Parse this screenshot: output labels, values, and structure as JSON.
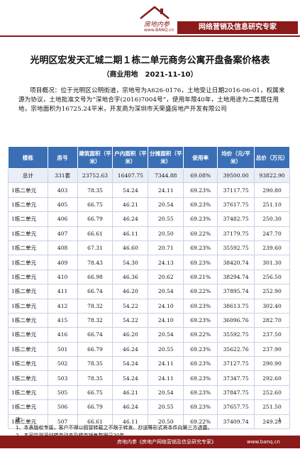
{
  "header": {
    "logo_text": "房地内参",
    "logo_url": "www.BANQ.cn",
    "banner": "网络营销及信息研究专家"
  },
  "title": "光明区宏发天汇城二期１栋二单元商务公寓开盘备案价格表",
  "subtitle": "（商业用地　2021-11-10）",
  "overview": "项目概况：位于光明区公明街道，宗地号为A626-0176，土地受让日期2016-06-01，权属来源为协议，土地批准文号为“深地合字(2016)7004号”，使用年限40年，土地用途为二类居住用地，宗地面积为16725.24平米，开发商为深圳市天荣盛房地产开发有限公司",
  "table": {
    "headers": [
      "楼栋",
      "房号",
      "建筑面积（平米）",
      "户内面积（平米）",
      "分摊面积（平米）",
      "使用率",
      "均价（元/平米）",
      "总价（万元）"
    ],
    "total": [
      "总计",
      "331套",
      "23752.63",
      "16407.75",
      "7344.88",
      "69.08%",
      "39500.00",
      "93822.90"
    ],
    "rows": [
      [
        "1栋二单元",
        "403",
        "78.35",
        "54.24",
        "24.11",
        "69.23%",
        "37117.75",
        "290.80"
      ],
      [
        "1栋二单元",
        "405",
        "66.75",
        "46.21",
        "20.54",
        "69.23%",
        "37617.75",
        "251.10"
      ],
      [
        "1栋二单元",
        "406",
        "66.79",
        "46.24",
        "20.55",
        "69.23%",
        "37482.75",
        "250.30"
      ],
      [
        "1栋二单元",
        "407",
        "66.61",
        "46.11",
        "20.50",
        "69.22%",
        "37179.75",
        "247.70"
      ],
      [
        "1栋二单元",
        "408",
        "67.31",
        "46.60",
        "20.71",
        "69.23%",
        "35592.75",
        "239.60"
      ],
      [
        "1栋二单元",
        "409",
        "78.43",
        "54.30",
        "24.13",
        "69.23%",
        "38420.74",
        "301.30"
      ],
      [
        "1栋二单元",
        "410",
        "66.98",
        "46.36",
        "20.62",
        "69.21%",
        "38294.74",
        "256.50"
      ],
      [
        "1栋二单元",
        "411",
        "66.74",
        "46.20",
        "20.54",
        "69.22%",
        "37895.74",
        "252.90"
      ],
      [
        "1栋二单元",
        "412",
        "78.32",
        "54.22",
        "24.10",
        "69.23%",
        "38613.75",
        "302.40"
      ],
      [
        "1栋二单元",
        "415",
        "78.32",
        "54.22",
        "24.10",
        "69.23%",
        "36096.76",
        "282.70"
      ],
      [
        "1栋二单元",
        "416",
        "66.74",
        "46.20",
        "20.54",
        "69.22%",
        "35592.75",
        "237.50"
      ],
      [
        "1栋二单元",
        "501",
        "66.79",
        "46.24",
        "20.55",
        "69.23%",
        "35622.76",
        "237.90"
      ],
      [
        "1栋二单元",
        "502",
        "78.35",
        "54.24",
        "24.11",
        "69.23%",
        "37127.75",
        "290.90"
      ],
      [
        "1栋二单元",
        "503",
        "78.35",
        "54.24",
        "24.11",
        "69.23%",
        "37347.75",
        "292.60"
      ],
      [
        "1栋二单元",
        "505",
        "66.75",
        "46.21",
        "20.54",
        "69.23%",
        "37847.75",
        "252.60"
      ],
      [
        "1栋二单元",
        "506",
        "66.79",
        "46.24",
        "20.55",
        "69.23%",
        "37657.75",
        "251.50"
      ],
      [
        "1栋二单元",
        "507",
        "66.61",
        "46.11",
        "20.50",
        "69.22%",
        "37409.74",
        "249.20"
      ]
    ]
  },
  "notes": {
    "label": "注：",
    "items": [
      "1、本表版权专属，客户不得以假冒转载之不限于转发、抄送等形式将本件向第三方透露。",
      "2、本司监测深圳楼市动态及楼市销售数据已20年。"
    ]
  },
  "page_number": "1",
  "footer": {
    "brand": "房地内参《房地产网络营销及信息研究专家》",
    "url": "www.banq.cn"
  }
}
